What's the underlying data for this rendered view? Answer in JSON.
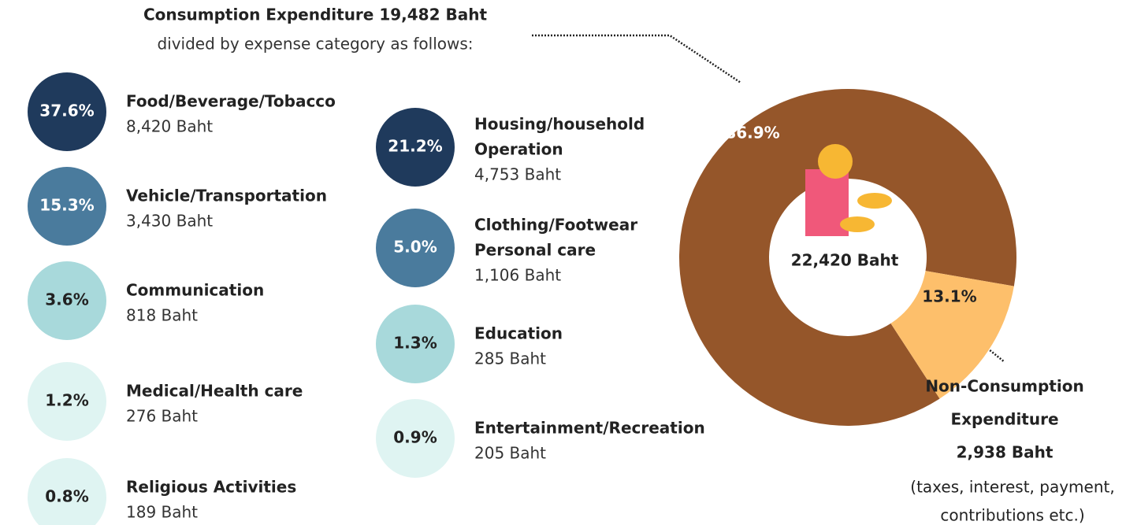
{
  "consumption": {
    "title": "Consumption Expenditure 19,482 Baht",
    "subtitle": "divided by expense category as follows:",
    "items": [
      {
        "percent": "37.6%",
        "label": [
          "Food/Beverage/Tobacco"
        ],
        "amount": "8,420 Baht",
        "color": "#1f3a5c"
      },
      {
        "percent": "15.3%",
        "label": [
          "Vehicle/Transportation"
        ],
        "amount": "3,430 Baht",
        "color": "#4a7b9d"
      },
      {
        "percent": "3.6%",
        "label": [
          "Communication"
        ],
        "amount": "818 Baht",
        "color": "#a8d9db"
      },
      {
        "percent": "1.2%",
        "label": [
          "Medical/Health care"
        ],
        "amount": "276 Baht",
        "color": "#dff4f2"
      },
      {
        "percent": "0.8%",
        "label": [
          "Religious Activities"
        ],
        "amount": "189 Baht",
        "color": "#dff4f2"
      },
      {
        "percent": "21.2%",
        "label": [
          "Housing/household",
          "Operation"
        ],
        "amount": "4,753 Baht",
        "color": "#1f3a5c"
      },
      {
        "percent": "5.0%",
        "label": [
          "Clothing/Footwear",
          "Personal care"
        ],
        "amount": "1,106 Baht",
        "color": "#4a7b9d"
      },
      {
        "percent": "1.3%",
        "label": [
          "Education"
        ],
        "amount": "285 Baht",
        "color": "#a8d9db"
      },
      {
        "percent": "0.9%",
        "label": [
          "Entertainment/Recreation"
        ],
        "amount": "205 Baht",
        "color": "#dff4f2"
      }
    ]
  },
  "non_consumption": {
    "title": [
      "Non-Consumption",
      "Expenditure"
    ],
    "amount": "2,938 Baht",
    "note": [
      "(taxes, interest, payment,",
      "contributions etc.)"
    ]
  },
  "chart_data": {
    "type": "pie",
    "donut": true,
    "values": [
      86.9,
      13.1
    ],
    "value_labels": [
      "86.9%",
      "13.1%"
    ],
    "colors": [
      "#95562a",
      "#fdbf6b"
    ],
    "center_label": "22,420 Baht"
  }
}
